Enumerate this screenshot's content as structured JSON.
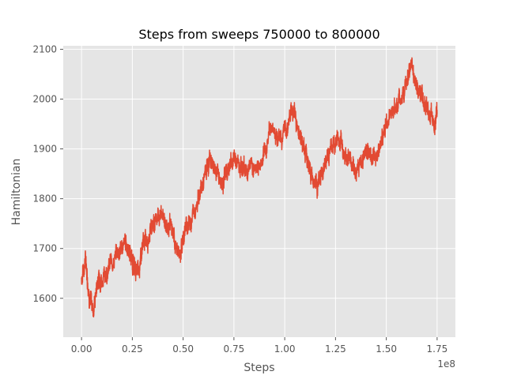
{
  "chart_data": {
    "type": "line",
    "title": "Steps from sweeps 750000 to 800000",
    "xlabel": "Steps",
    "ylabel": "Hamiltonian",
    "x_offset_label": "1e8",
    "x_range": [
      0,
      1.75
    ],
    "xlim": [
      -0.09,
      1.84
    ],
    "ylim": [
      1522,
      2107
    ],
    "x_ticks": [
      0.0,
      0.25,
      0.5,
      0.75,
      1.0,
      1.25,
      1.5,
      1.75
    ],
    "x_tick_labels": [
      "0.00",
      "0.25",
      "0.50",
      "0.75",
      "1.00",
      "1.25",
      "1.50",
      "1.75"
    ],
    "y_ticks": [
      1600,
      1700,
      1800,
      1900,
      2000,
      2100
    ],
    "y_tick_labels": [
      "1600",
      "1700",
      "1800",
      "1900",
      "2000",
      "2100"
    ],
    "grid": true,
    "series": [
      {
        "color": "#e24a33",
        "points": [
          [
            0.0,
            1640
          ],
          [
            0.02,
            1680
          ],
          [
            0.04,
            1600
          ],
          [
            0.06,
            1580
          ],
          [
            0.08,
            1640
          ],
          [
            0.1,
            1640
          ],
          [
            0.13,
            1660
          ],
          [
            0.16,
            1680
          ],
          [
            0.19,
            1700
          ],
          [
            0.22,
            1710
          ],
          [
            0.24,
            1690
          ],
          [
            0.26,
            1660
          ],
          [
            0.28,
            1650
          ],
          [
            0.3,
            1700
          ],
          [
            0.33,
            1730
          ],
          [
            0.36,
            1760
          ],
          [
            0.39,
            1770
          ],
          [
            0.42,
            1750
          ],
          [
            0.45,
            1730
          ],
          [
            0.48,
            1680
          ],
          [
            0.51,
            1740
          ],
          [
            0.54,
            1760
          ],
          [
            0.57,
            1800
          ],
          [
            0.6,
            1830
          ],
          [
            0.63,
            1880
          ],
          [
            0.66,
            1860
          ],
          [
            0.69,
            1830
          ],
          [
            0.72,
            1860
          ],
          [
            0.75,
            1880
          ],
          [
            0.78,
            1870
          ],
          [
            0.81,
            1860
          ],
          [
            0.84,
            1870
          ],
          [
            0.87,
            1860
          ],
          [
            0.9,
            1880
          ],
          [
            0.93,
            1950
          ],
          [
            0.96,
            1930
          ],
          [
            0.99,
            1920
          ],
          [
            1.02,
            1960
          ],
          [
            1.05,
            1980
          ],
          [
            1.08,
            1920
          ],
          [
            1.11,
            1880
          ],
          [
            1.14,
            1840
          ],
          [
            1.17,
            1830
          ],
          [
            1.2,
            1870
          ],
          [
            1.23,
            1900
          ],
          [
            1.26,
            1920
          ],
          [
            1.29,
            1910
          ],
          [
            1.32,
            1880
          ],
          [
            1.35,
            1850
          ],
          [
            1.38,
            1880
          ],
          [
            1.41,
            1900
          ],
          [
            1.44,
            1880
          ],
          [
            1.47,
            1910
          ],
          [
            1.5,
            1950
          ],
          [
            1.53,
            1980
          ],
          [
            1.56,
            1990
          ],
          [
            1.59,
            2020
          ],
          [
            1.62,
            2060
          ],
          [
            1.65,
            2030
          ],
          [
            1.68,
            2000
          ],
          [
            1.71,
            1980
          ],
          [
            1.74,
            1950
          ],
          [
            1.75,
            1970
          ]
        ]
      }
    ]
  }
}
